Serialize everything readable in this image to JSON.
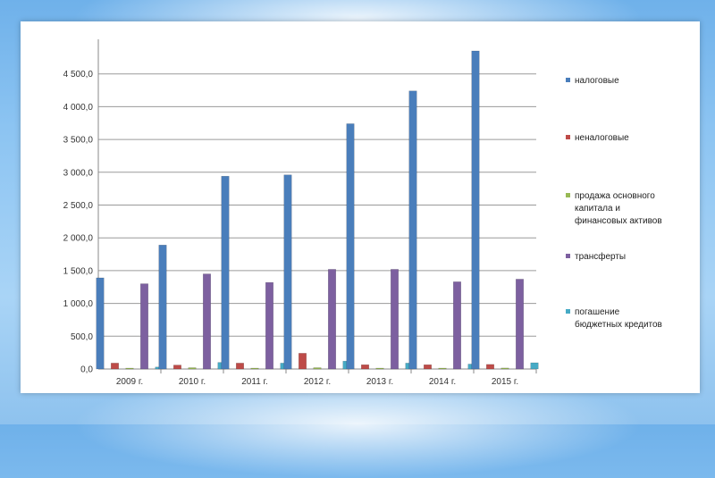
{
  "chart_data": {
    "type": "bar",
    "categories": [
      "2009 г.",
      "2010 г.",
      "2011 г.",
      "2012 г.",
      "2013 г.",
      "2014 г.",
      "2015 г."
    ],
    "series": [
      {
        "name": "налоговые",
        "color": "#4a7ebb",
        "values": [
          1390,
          1890,
          2940,
          2960,
          3740,
          4240,
          4850
        ]
      },
      {
        "name": "неналоговые",
        "color": "#be4b48",
        "values": [
          90,
          60,
          90,
          240,
          65,
          65,
          70
        ]
      },
      {
        "name": "продажа основного капитала и финансовых активов",
        "legend_lines": [
          "продажа основного",
          "капитала и",
          "финансовых активов"
        ],
        "color": "#98b954",
        "values": [
          5,
          20,
          10,
          20,
          10,
          10,
          15
        ]
      },
      {
        "name": "трансферты",
        "color": "#7d60a0",
        "values": [
          1300,
          1450,
          1320,
          1520,
          1520,
          1330,
          1370
        ]
      },
      {
        "name": "погашение бюджетных кредитов",
        "legend_lines": [
          "погашение",
          "бюджетных кредитов"
        ],
        "color": "#46aac5",
        "values": [
          30,
          100,
          90,
          120,
          90,
          75,
          95
        ]
      }
    ],
    "y_ticks": [
      "0,0",
      "500,0",
      "1 000,0",
      "1 500,0",
      "2 000,0",
      "2 500,0",
      "3 000,0",
      "3 500,0",
      "4 000,0",
      "4 500,0"
    ],
    "ylim": [
      0,
      5000
    ],
    "grid": true,
    "legend_position": "right"
  }
}
